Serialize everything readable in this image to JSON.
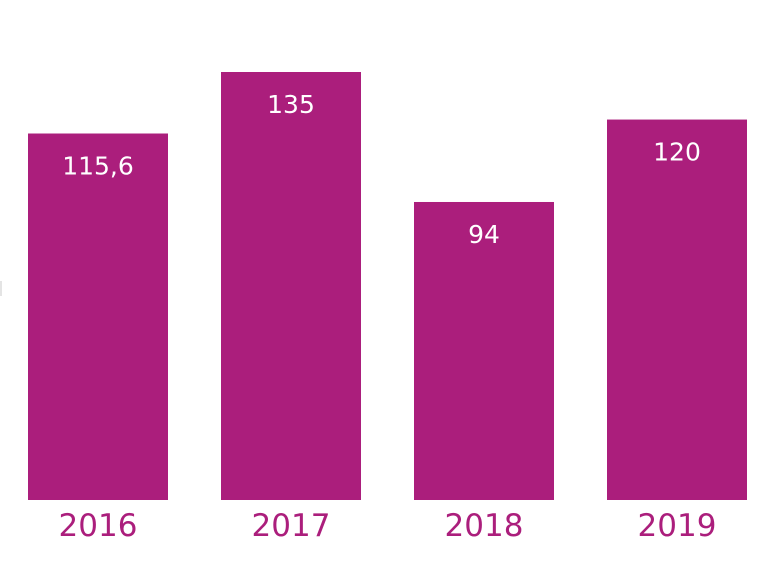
{
  "chart_data": {
    "type": "bar",
    "categories": [
      "2016",
      "2017",
      "2018",
      "2019"
    ],
    "values": [
      115.6,
      135,
      94,
      120
    ],
    "value_labels": [
      "115,6",
      "135",
      "94",
      "120"
    ],
    "title": "",
    "xlabel": "",
    "ylabel": "",
    "ylim": [
      0,
      135
    ],
    "grid": false,
    "legend": "none",
    "colors": {
      "bar": "#AB1E7C",
      "value_label": "#FFFFFF",
      "category_label": "#AB1E7C"
    }
  }
}
